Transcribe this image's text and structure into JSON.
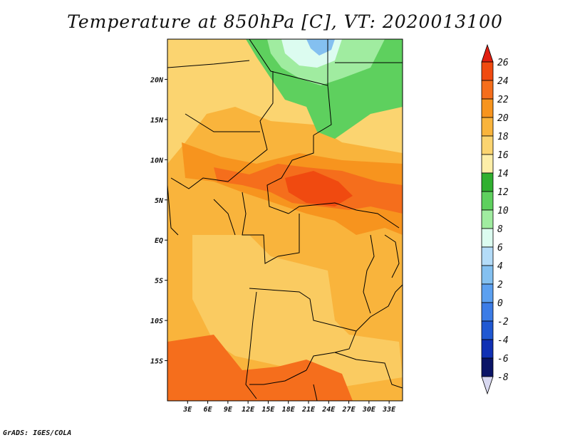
{
  "title": "Temperature at 850hPa [C], VT: 2020013100",
  "credit": "GrADS: IGES/COLA",
  "lat_labels": [
    "20N",
    "15N",
    "10N",
    "5N",
    "EQ",
    "5S",
    "10S",
    "15S"
  ],
  "lon_labels": [
    "3E",
    "6E",
    "9E",
    "12E",
    "15E",
    "18E",
    "21E",
    "24E",
    "27E",
    "30E",
    "33E"
  ],
  "lat_values": [
    20,
    15,
    10,
    5,
    0,
    -5,
    -10,
    -15
  ],
  "lon_values": [
    3,
    6,
    9,
    12,
    15,
    18,
    21,
    24,
    27,
    30,
    33
  ],
  "extent": {
    "lon_min": 0,
    "lon_max": 35,
    "lat_min": -20,
    "lat_max": 25
  },
  "colorbar": {
    "labels": [
      "26",
      "24",
      "22",
      "20",
      "18",
      "16",
      "14",
      "12",
      "10",
      "8",
      "6",
      "4",
      "2",
      "0",
      "-2",
      "-4",
      "-6",
      "-8"
    ],
    "colors": [
      "#e01e10",
      "#f04a10",
      "#f56e1c",
      "#f7941e",
      "#f9b43c",
      "#fbd470",
      "#fdeea8",
      "#30b030",
      "#5ed05e",
      "#a0eca0",
      "#dcfcf0",
      "#b4dcf8",
      "#84c0f0",
      "#5ca0f0",
      "#3c7ce6",
      "#2058d2",
      "#1030b4",
      "#0a1466",
      "#d8d8f0"
    ]
  },
  "map": {
    "background": "#f9b43c",
    "regions": [
      {
        "name": "sahara-yellow",
        "color": "#fbd470"
      },
      {
        "name": "sahara-green",
        "color": "#5ed05e"
      },
      {
        "name": "sahara-lightgreen",
        "color": "#a0eca0"
      },
      {
        "name": "sahara-cyan",
        "color": "#dcfcf0"
      },
      {
        "name": "sahara-blue",
        "color": "#84c0f0"
      },
      {
        "name": "central-orange",
        "color": "#f7941e"
      },
      {
        "name": "central-red",
        "color": "#f56e1c"
      },
      {
        "name": "hotspot",
        "color": "#f04a10"
      },
      {
        "name": "southern-hot",
        "color": "#f56e1c"
      }
    ]
  }
}
